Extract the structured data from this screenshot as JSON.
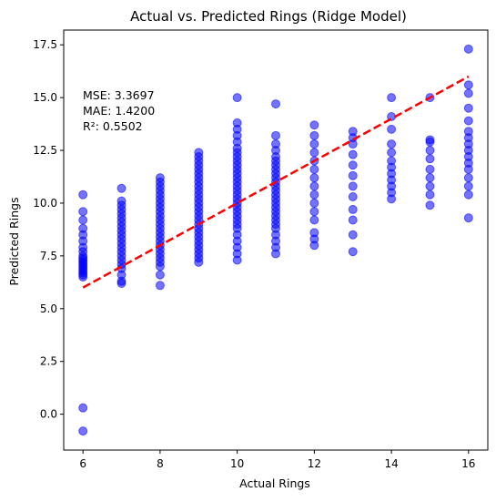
{
  "chart_data": {
    "type": "scatter",
    "title": "Actual vs. Predicted Rings (Ridge Model)",
    "xlabel": "Actual Rings",
    "ylabel": "Predicted Rings",
    "xlim": [
      5.5,
      16.5
    ],
    "ylim": [
      -1.7,
      18.2
    ],
    "xticks": [
      6,
      8,
      10,
      12,
      14,
      16
    ],
    "xtick_labels": [
      "6",
      "8",
      "10",
      "12",
      "14",
      "16"
    ],
    "yticks": [
      0.0,
      2.5,
      5.0,
      7.5,
      10.0,
      12.5,
      15.0,
      17.5
    ],
    "ytick_labels": [
      "0.0",
      "2.5",
      "5.0",
      "7.5",
      "10.0",
      "12.5",
      "15.0",
      "17.5"
    ],
    "grid": false,
    "annotation_lines": [
      "MSE: 3.3697",
      "MAE: 1.4200",
      "R²: 0.5502"
    ],
    "reference_line": {
      "x": [
        6,
        16
      ],
      "y": [
        6,
        16
      ],
      "color": "#ff0000",
      "style": "dashed"
    },
    "point_color": "#0000ff",
    "point_alpha": 0.55,
    "points": [
      {
        "x": 6,
        "y": [
          -0.8,
          0.3,
          6.5,
          6.6,
          6.7,
          6.8,
          6.9,
          7.0,
          7.1,
          7.2,
          7.3,
          7.4,
          7.5,
          7.7,
          7.9,
          8.2,
          8.5,
          8.8,
          9.2,
          9.6,
          10.4
        ]
      },
      {
        "x": 7,
        "y": [
          6.2,
          6.3,
          6.6,
          6.9,
          7.1,
          7.3,
          7.5,
          7.7,
          7.9,
          8.1,
          8.3,
          8.5,
          8.7,
          8.9,
          9.1,
          9.3,
          9.5,
          9.7,
          9.9,
          10.1,
          10.7
        ]
      },
      {
        "x": 8,
        "y": [
          6.1,
          6.6,
          7.0,
          7.2,
          7.4,
          7.6,
          7.8,
          8.0,
          8.2,
          8.4,
          8.6,
          8.8,
          9.0,
          9.2,
          9.4,
          9.6,
          9.8,
          10.0,
          10.2,
          10.4,
          10.6,
          10.8,
          11.0,
          11.2
        ]
      },
      {
        "x": 9,
        "y": [
          7.2,
          7.4,
          7.6,
          7.8,
          8.0,
          8.2,
          8.4,
          8.6,
          8.8,
          9.0,
          9.2,
          9.4,
          9.6,
          9.8,
          10.0,
          10.2,
          10.4,
          10.6,
          10.8,
          11.0,
          11.2,
          11.4,
          11.6,
          11.8,
          12.0,
          12.2,
          12.4
        ]
      },
      {
        "x": 10,
        "y": [
          7.3,
          7.6,
          7.9,
          8.2,
          8.5,
          8.8,
          9.0,
          9.2,
          9.4,
          9.6,
          9.8,
          10.0,
          10.2,
          10.4,
          10.6,
          10.8,
          11.0,
          11.2,
          11.4,
          11.6,
          11.8,
          12.0,
          12.2,
          12.4,
          12.6,
          12.9,
          13.2,
          13.5,
          13.8,
          15.0
        ]
      },
      {
        "x": 11,
        "y": [
          7.6,
          7.9,
          8.2,
          8.5,
          8.8,
          9.0,
          9.2,
          9.4,
          9.6,
          9.8,
          10.0,
          10.2,
          10.4,
          10.6,
          10.8,
          11.0,
          11.2,
          11.4,
          11.6,
          11.8,
          12.0,
          12.2,
          12.5,
          12.8,
          13.2,
          14.7
        ]
      },
      {
        "x": 12,
        "y": [
          8.0,
          8.3,
          8.6,
          9.2,
          9.6,
          10.0,
          10.4,
          10.8,
          11.2,
          11.6,
          12.0,
          12.4,
          12.8,
          13.2,
          13.7
        ]
      },
      {
        "x": 13,
        "y": [
          7.7,
          8.5,
          9.2,
          9.7,
          10.3,
          10.8,
          11.3,
          11.8,
          12.3,
          12.8,
          13.1,
          13.4
        ]
      },
      {
        "x": 14,
        "y": [
          10.2,
          10.5,
          10.8,
          11.1,
          11.4,
          11.7,
          12.0,
          12.4,
          12.8,
          13.5,
          14.1,
          15.0
        ]
      },
      {
        "x": 15,
        "y": [
          9.9,
          10.4,
          10.8,
          11.2,
          11.6,
          12.1,
          12.5,
          12.9,
          13.0,
          15.0
        ]
      },
      {
        "x": 16,
        "y": [
          9.3,
          10.4,
          10.8,
          11.2,
          11.6,
          11.9,
          12.2,
          12.5,
          12.8,
          13.1,
          13.4,
          13.9,
          14.5,
          15.2,
          15.6,
          17.3
        ]
      }
    ]
  }
}
